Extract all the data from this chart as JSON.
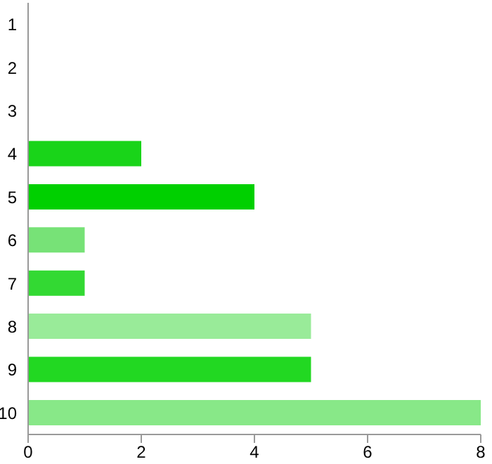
{
  "chart_data": {
    "type": "bar",
    "orientation": "horizontal",
    "categories": [
      "1",
      "2",
      "3",
      "4",
      "5",
      "6",
      "7",
      "8",
      "9",
      "10"
    ],
    "values": [
      0,
      0,
      0,
      2,
      4,
      1,
      1,
      5,
      5,
      8
    ],
    "colors": [
      "#19d419",
      "#19d419",
      "#19d419",
      "#19d419",
      "#00d000",
      "#77e277",
      "#33d933",
      "#99eb99",
      "#22d822",
      "#88e888"
    ],
    "xlim": [
      0,
      8
    ],
    "xticks": [
      0,
      2,
      4,
      6,
      8
    ],
    "grid": false,
    "legend": false
  }
}
